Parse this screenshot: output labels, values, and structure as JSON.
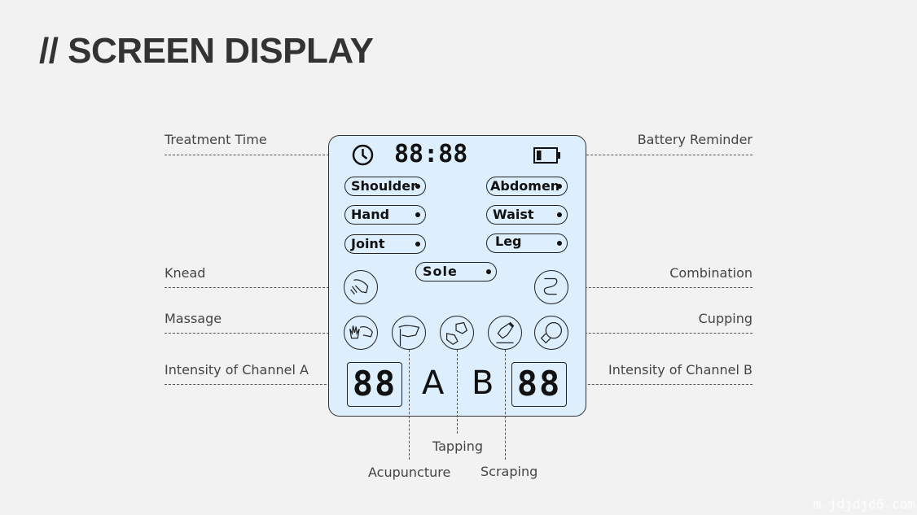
{
  "title": "// SCREEN DISPLAY",
  "labels": {
    "treatment_time": "Treatment Time",
    "battery": "Battery Reminder",
    "knead": "Knead",
    "combination": "Combination",
    "massage": "Massage",
    "cupping": "Cupping",
    "intensity_a": "Intensity of Channel A",
    "intensity_b": "Intensity of Channel B",
    "acupuncture": "Acupuncture",
    "tapping": "Tapping",
    "scraping": "Scraping"
  },
  "display": {
    "time": "88:88",
    "areas": [
      "Shoulder",
      "Abdomen",
      "Hand",
      "Waist",
      "Joint",
      "Leg",
      "Sole"
    ],
    "channel_a": "A",
    "channel_b": "B",
    "intensity_a": "88",
    "intensity_b": "88",
    "battery_level": 0.25
  },
  "watermark": "m.jdjdjd6.com",
  "colors": {
    "screen": "#ddeefc",
    "background": "#f2f2f2"
  }
}
